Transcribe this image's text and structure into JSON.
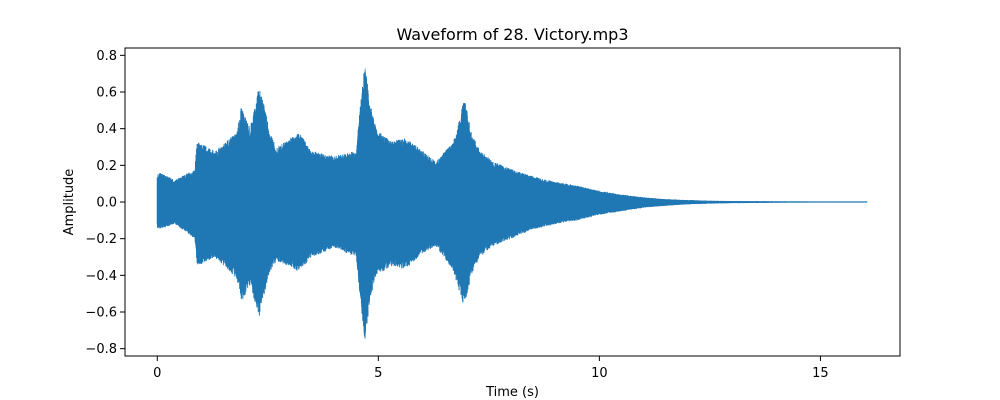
{
  "chart_data": {
    "type": "line",
    "title": "Waveform of 28. Victory.mp3",
    "xlabel": "Time (s)",
    "ylabel": "Amplitude",
    "xlim": [
      -0.73,
      16.8
    ],
    "ylim": [
      -0.84,
      0.84
    ],
    "xticks": [
      0,
      5,
      10,
      15
    ],
    "xtick_labels": [
      "0",
      "5",
      "10",
      "15"
    ],
    "yticks": [
      -0.8,
      -0.6,
      -0.4,
      -0.2,
      0.0,
      0.2,
      0.4,
      0.6,
      0.8
    ],
    "ytick_labels": [
      "−0.8",
      "−0.6",
      "−0.4",
      "−0.2",
      "0.0",
      "0.2",
      "0.4",
      "0.6",
      "0.8"
    ],
    "grid": false,
    "series_color": "#1f77b4",
    "duration_s": 16.05,
    "envelope": {
      "t": [
        0,
        0.05,
        0.4,
        0.85,
        0.9,
        1.3,
        1.8,
        1.9,
        2.1,
        2.3,
        2.4,
        2.55,
        2.7,
        3.2,
        3.5,
        4.0,
        4.5,
        4.6,
        4.7,
        4.8,
        4.95,
        5.3,
        5.6,
        6.0,
        6.3,
        6.7,
        6.95,
        7.1,
        7.3,
        7.6,
        8.0,
        8.5,
        9.0,
        9.5,
        10.0,
        10.5,
        11.0,
        11.5,
        12.0,
        12.5,
        13.0,
        14.0,
        15.0,
        16.05
      ],
      "pos": [
        0.15,
        0.16,
        0.12,
        0.18,
        0.33,
        0.28,
        0.38,
        0.52,
        0.4,
        0.63,
        0.55,
        0.38,
        0.3,
        0.38,
        0.28,
        0.25,
        0.28,
        0.55,
        0.76,
        0.55,
        0.4,
        0.33,
        0.35,
        0.28,
        0.22,
        0.33,
        0.57,
        0.38,
        0.28,
        0.22,
        0.18,
        0.14,
        0.11,
        0.09,
        0.06,
        0.04,
        0.025,
        0.015,
        0.01,
        0.006,
        0.004,
        0.003,
        0.002,
        0.002
      ],
      "neg": [
        -0.14,
        -0.15,
        -0.12,
        -0.2,
        -0.35,
        -0.3,
        -0.42,
        -0.55,
        -0.45,
        -0.63,
        -0.52,
        -0.38,
        -0.32,
        -0.38,
        -0.3,
        -0.25,
        -0.3,
        -0.55,
        -0.77,
        -0.55,
        -0.4,
        -0.35,
        -0.37,
        -0.28,
        -0.24,
        -0.38,
        -0.58,
        -0.4,
        -0.3,
        -0.24,
        -0.2,
        -0.15,
        -0.12,
        -0.1,
        -0.07,
        -0.05,
        -0.03,
        -0.02,
        -0.012,
        -0.008,
        -0.005,
        -0.003,
        -0.002,
        -0.002
      ]
    }
  }
}
